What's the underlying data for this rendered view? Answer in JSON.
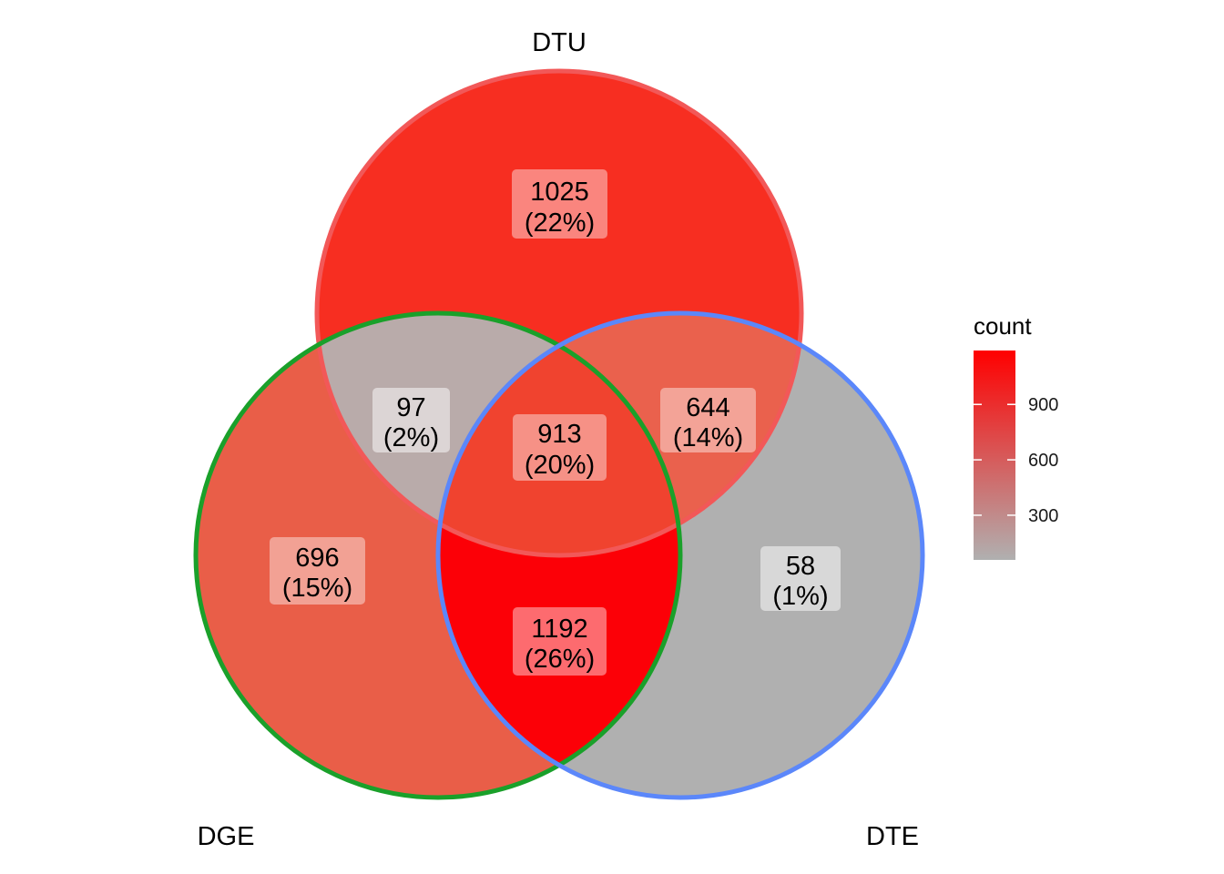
{
  "sets": [
    {
      "key": "DTU",
      "name": "DTU",
      "stroke": "#f25858"
    },
    {
      "key": "DGE",
      "name": "DGE",
      "stroke": "#1aa02a"
    },
    {
      "key": "DTE",
      "name": "DTE",
      "stroke": "#5b87fa"
    }
  ],
  "regions": [
    {
      "id": "dtu-only",
      "count": "1025",
      "percent": "(22%)",
      "fill": "#f72e21",
      "value": 1025
    },
    {
      "id": "dge-only",
      "count": "696",
      "percent": "(15%)",
      "fill": "#e95e48",
      "value": 696
    },
    {
      "id": "dte-only",
      "count": "58",
      "percent": "(1%)",
      "fill": "#b0b0b0",
      "value": 58
    },
    {
      "id": "dtu-dge",
      "count": "97",
      "percent": "(2%)",
      "fill": "#b9abaa",
      "value": 97
    },
    {
      "id": "dtu-dte",
      "count": "644",
      "percent": "(14%)",
      "fill": "#ea614d",
      "value": 644
    },
    {
      "id": "dge-dte",
      "count": "1192",
      "percent": "(26%)",
      "fill": "#fc0007",
      "value": 1192
    },
    {
      "id": "all",
      "count": "913",
      "percent": "(20%)",
      "fill": "#f0432f",
      "value": 913
    }
  ],
  "legend": {
    "title": "count",
    "ticks": [
      "300",
      "600",
      "900"
    ],
    "tick_values": [
      300,
      600,
      900
    ],
    "min": 58,
    "max": 1192,
    "color_low": "#b0b0b0",
    "color_high": "#ff0000"
  }
}
